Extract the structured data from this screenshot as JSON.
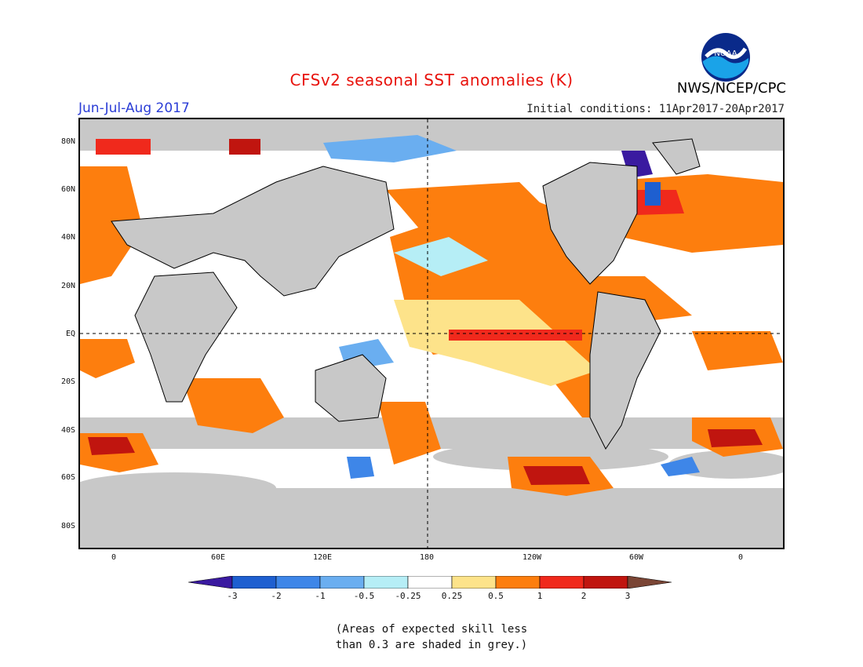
{
  "header": {
    "title": "CFSv2 seasonal SST anomalies (K)",
    "season": "Jun-Jul-Aug 2017",
    "org": "NWS/NCEP/CPC",
    "initial_conditions": "Initial conditions: 11Apr2017-20Apr2017",
    "logo_text": "NOAA"
  },
  "map": {
    "lat_labels": [
      "80N",
      "60N",
      "40N",
      "20N",
      "EQ",
      "20S",
      "40S",
      "60S",
      "80S"
    ],
    "lon_labels": [
      "0",
      "60E",
      "120E",
      "180",
      "120W",
      "60W",
      "0"
    ],
    "land_color": "#c8c8c8",
    "ocean_background": "#ffffff"
  },
  "colorbar": {
    "ticks": [
      "-3",
      "-2",
      "-1",
      "-0.5",
      "-0.25",
      "0.25",
      "0.5",
      "1",
      "2",
      "3"
    ],
    "colors": [
      "#3a1aa0",
      "#1e5fd0",
      "#3e86e8",
      "#6aaef0",
      "#b6eef6",
      "#ffffff",
      "#fde38a",
      "#fd7e0e",
      "#f0291c",
      "#c0150f",
      "#7a4535"
    ]
  },
  "footnote": {
    "line1": "(Areas of expected skill less",
    "line2": "than 0.3 are shaded in grey.)"
  }
}
